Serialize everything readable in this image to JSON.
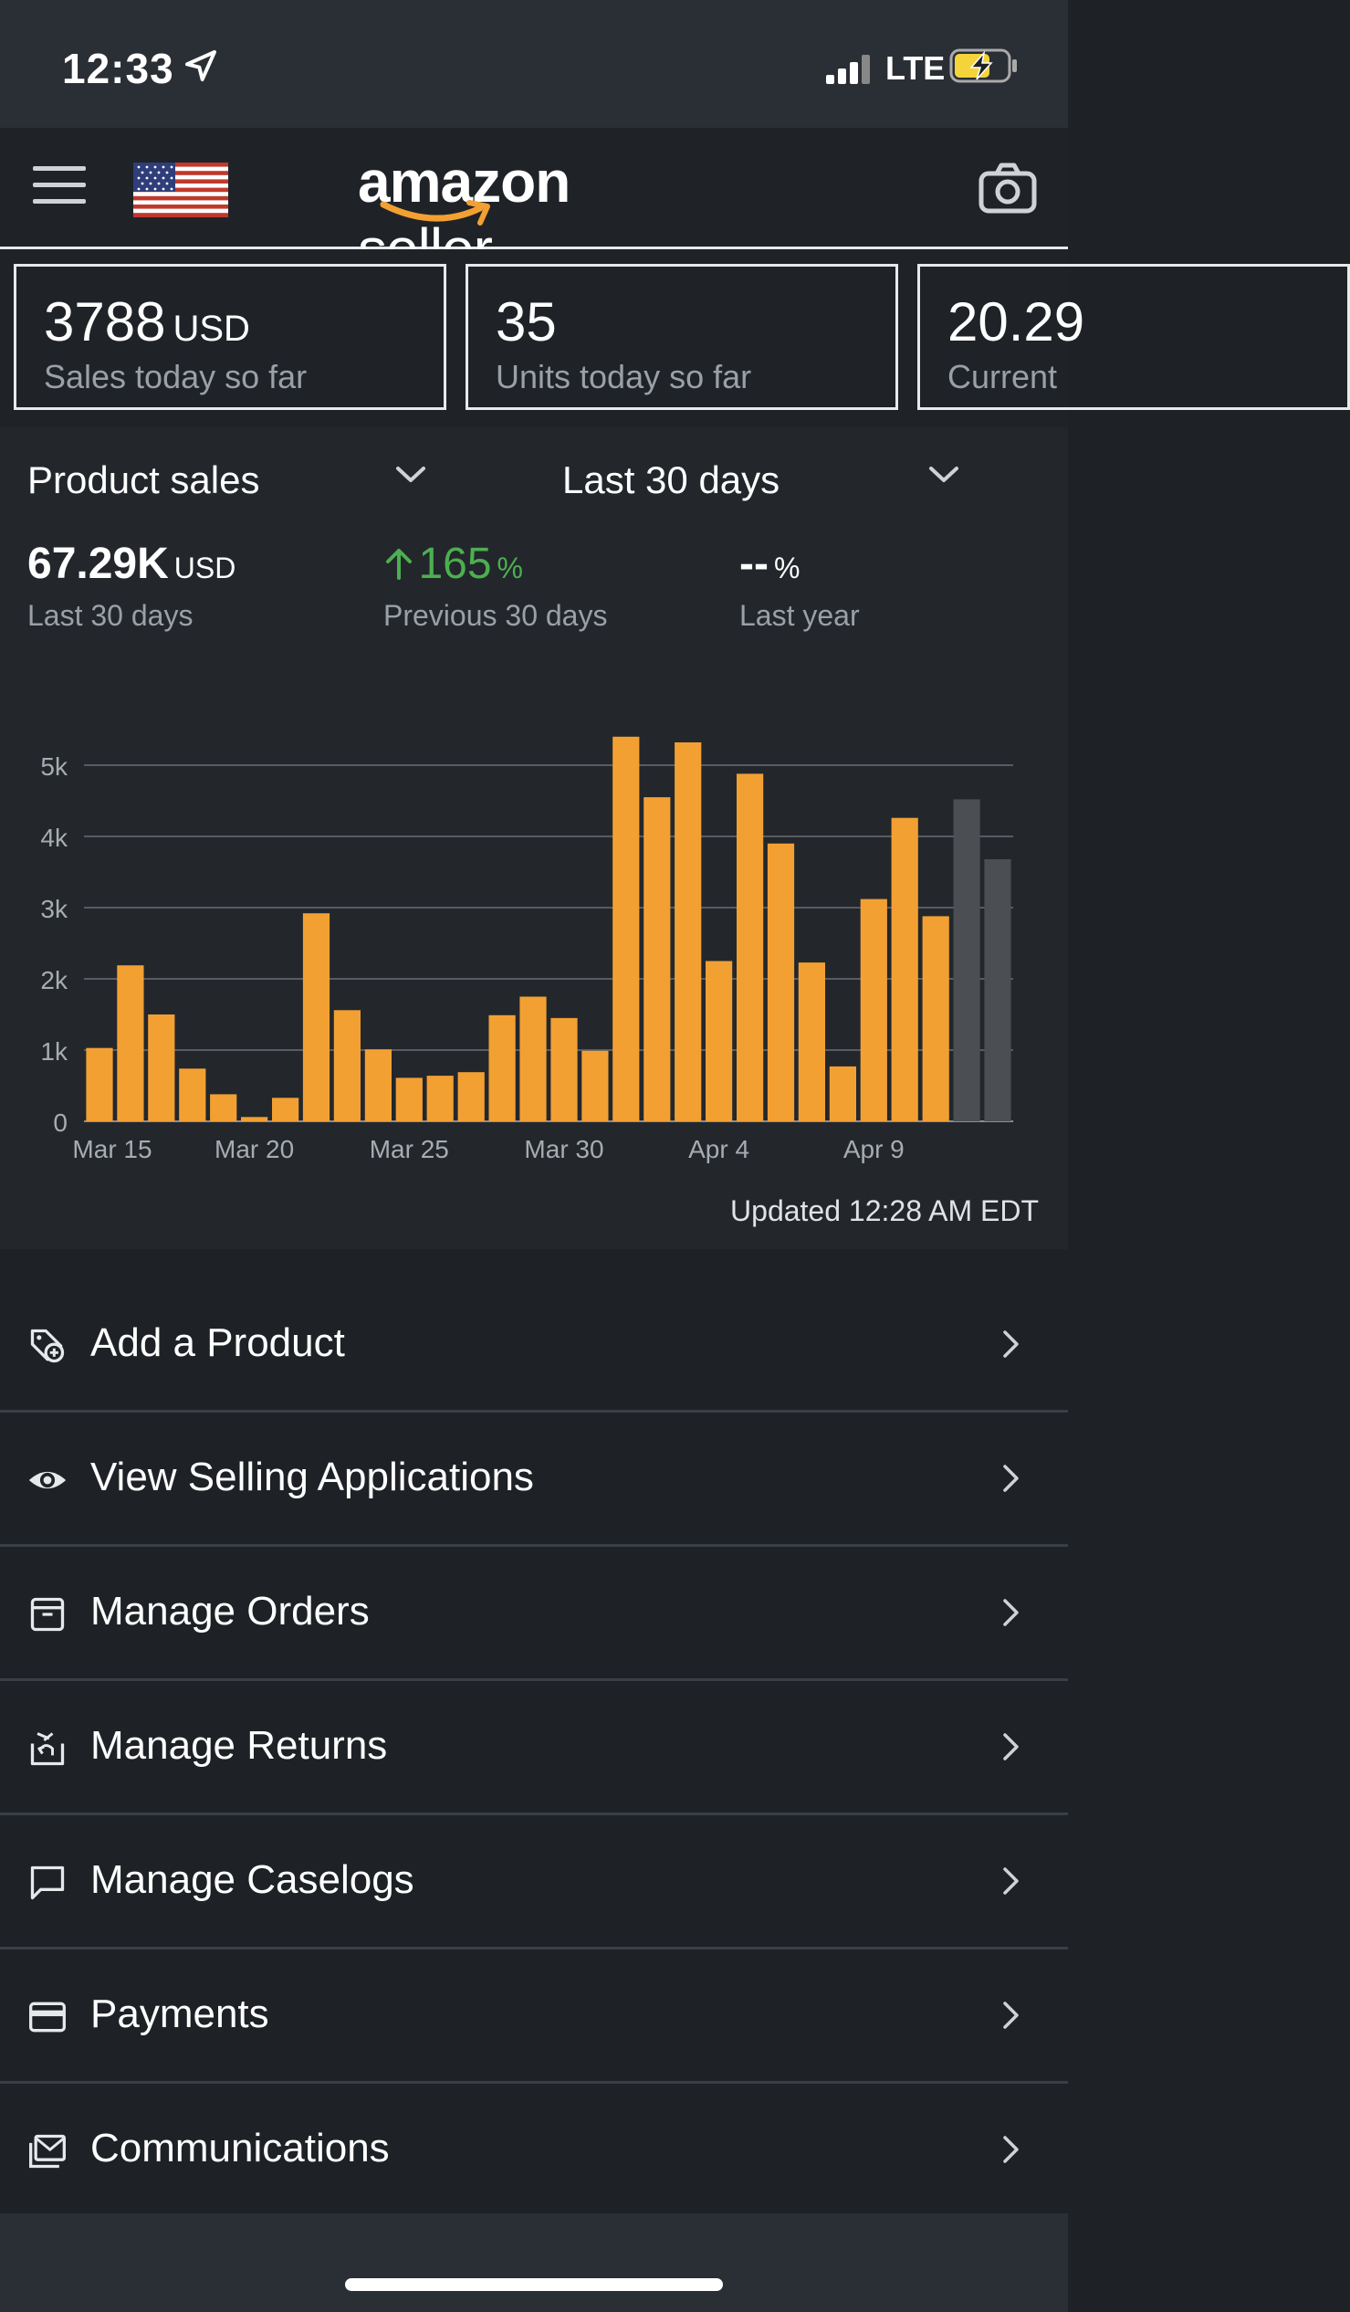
{
  "status_bar": {
    "time": "12:33",
    "network": "LTE",
    "icons": [
      "location-arrow-icon",
      "signal-bars-icon",
      "battery-charging-icon"
    ]
  },
  "header": {
    "logo_main": "amazon",
    "logo_sub": "seller",
    "icons": [
      "menu-icon",
      "us-flag-icon",
      "camera-icon"
    ]
  },
  "kpis": [
    {
      "value": "3788",
      "unit": "USD",
      "label": "Sales today so far"
    },
    {
      "value": "35",
      "unit": "",
      "label": "Units today so far"
    },
    {
      "value": "20.29",
      "unit": "",
      "label": "Current"
    }
  ],
  "sales": {
    "metric_selector": "Product sales",
    "range_selector": "Last 30 days",
    "total": {
      "value": "67.29K",
      "unit": "USD",
      "label": "Last 30 days"
    },
    "previous": {
      "value": "165",
      "unit": "%",
      "label": "Previous 30 days"
    },
    "last_year": {
      "value": "--",
      "unit": "%",
      "label": "Last year"
    },
    "updated": "Updated 12:28 AM EDT"
  },
  "chart_data": {
    "type": "bar",
    "xlabel": "",
    "ylabel": "",
    "ylim": [
      0,
      5000
    ],
    "y_ticks": [
      "0",
      "1k",
      "2k",
      "3k",
      "4k",
      "5k"
    ],
    "x_tick_labels": [
      "Mar 15",
      "Mar 20",
      "Mar 25",
      "Mar 30",
      "Apr 4",
      "Apr 9"
    ],
    "colors": {
      "actual": "#f3a033",
      "projected": "#4b4e52"
    },
    "values": [
      1030,
      2190,
      1500,
      740,
      380,
      60,
      330,
      2920,
      1560,
      1010,
      610,
      640,
      690,
      1490,
      1750,
      1450,
      990,
      5400,
      4550,
      5320,
      2250,
      4880,
      3900,
      2230,
      770,
      3120,
      4260,
      2880,
      4520,
      3680
    ],
    "projected": [
      false,
      false,
      false,
      false,
      false,
      false,
      false,
      false,
      false,
      false,
      false,
      false,
      false,
      false,
      false,
      false,
      false,
      false,
      false,
      false,
      false,
      false,
      false,
      false,
      false,
      false,
      false,
      false,
      true,
      true
    ]
  },
  "menu": [
    {
      "label": "Add a Product",
      "icon": "tag-plus-icon"
    },
    {
      "label": "View Selling Applications",
      "icon": "eye-icon"
    },
    {
      "label": "Manage Orders",
      "icon": "box-icon"
    },
    {
      "label": "Manage Returns",
      "icon": "return-box-icon"
    },
    {
      "label": "Manage Caselogs",
      "icon": "chat-bubble-icon"
    },
    {
      "label": "Payments",
      "icon": "credit-card-icon"
    },
    {
      "label": "Communications",
      "icon": "mail-icon"
    }
  ]
}
